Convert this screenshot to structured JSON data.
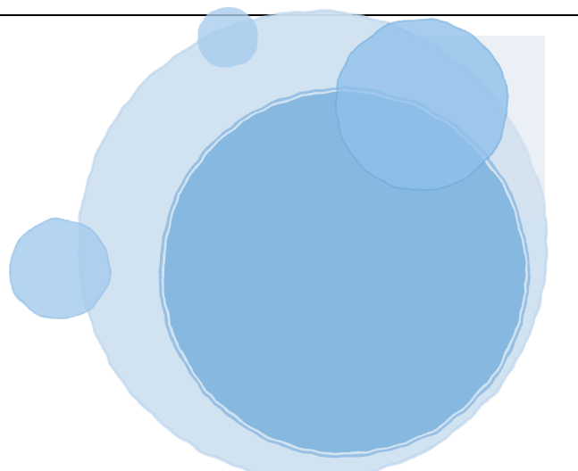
{
  "palette": {
    "rule": "#000000",
    "large_circle": "#cfe1f1",
    "large_circle_stroke": "#b9d3ec",
    "inner_circle": "#82b6e0",
    "inner_circle_stroke": "#6aa6da",
    "small_circle": "#a9cdee",
    "small_circle_stroke": "#8fbde7",
    "top_right_circle": "#8fc0ea",
    "overlay_panel": "#d8e3ef"
  },
  "graphics": {
    "large_circle_icon": "paint-stroke-circle",
    "inner_circle_icon": "paint-stroke-circle",
    "top_small_circle_icon": "paint-stroke-circle",
    "top_right_circle_icon": "paint-stroke-circle",
    "left_circle_icon": "paint-stroke-circle"
  }
}
